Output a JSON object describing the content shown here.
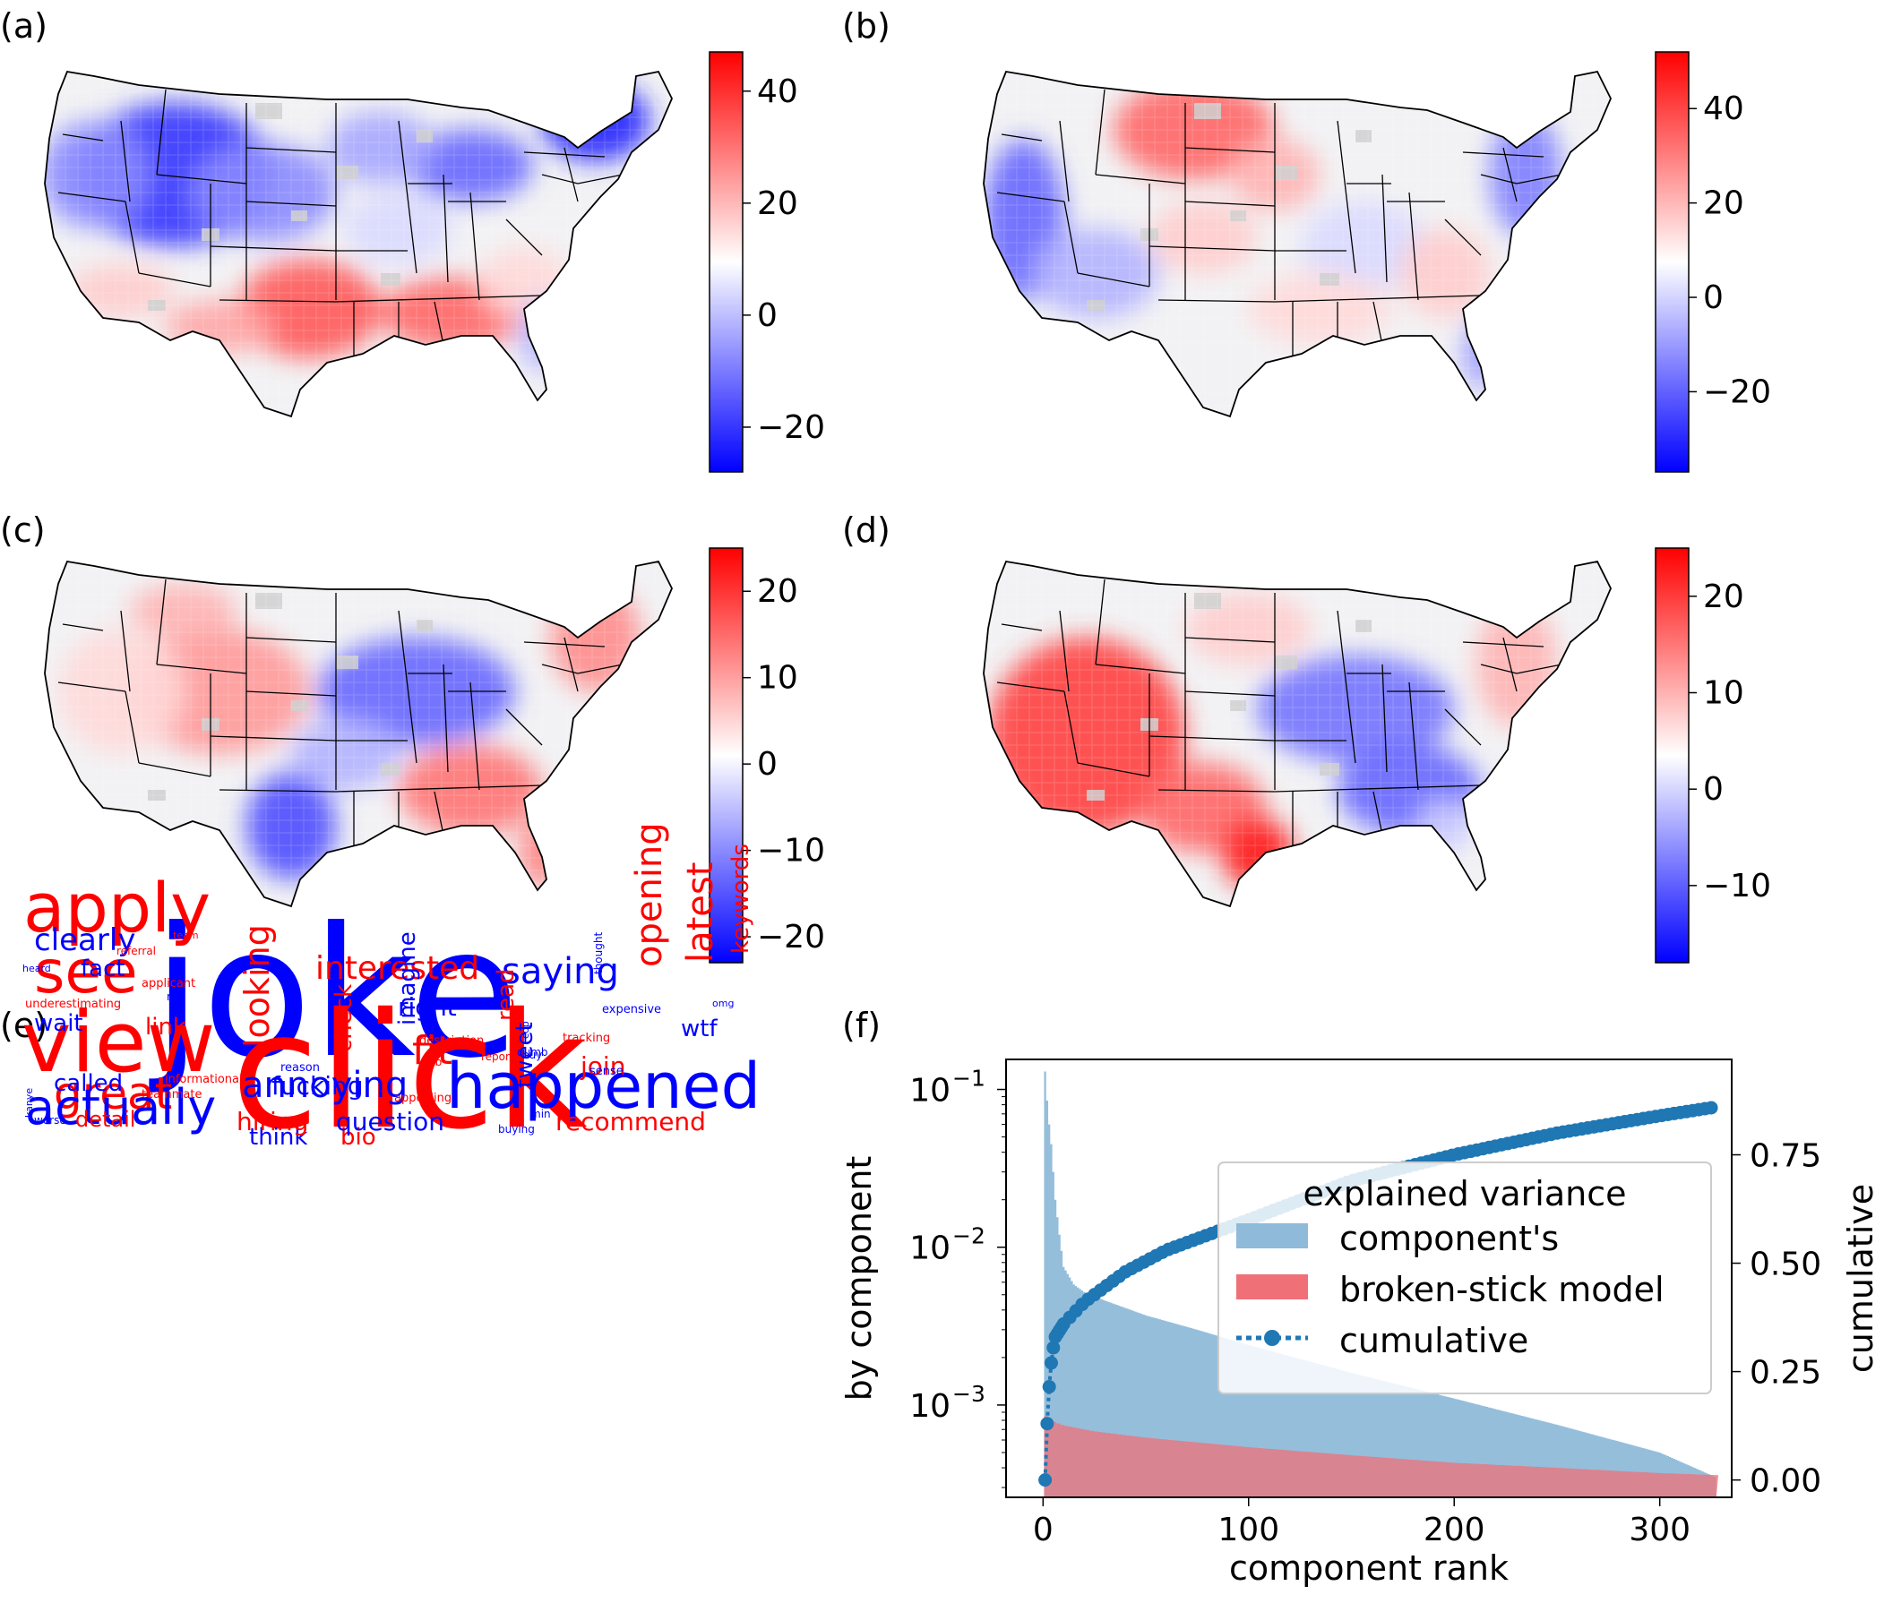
{
  "panel_labels": [
    "(a)",
    "(b)",
    "(c)",
    "(d)",
    "(e)",
    "(f)"
  ],
  "colors": {
    "positive": "#ff0000",
    "negative": "#0000ff",
    "neutral": "#ffffff",
    "missing": "#d0d0d0",
    "component_bar": "#8fbad9",
    "broken_stick": "#f07078",
    "cumulative": "#1f77b4"
  },
  "chart_data": [
    {
      "type": "heatmap",
      "panel": "(a)",
      "subject": "US county map",
      "colorscale": "bwr",
      "colorbar": {
        "min": -28,
        "max": 47,
        "ticks": [
          40,
          20,
          0,
          -20
        ],
        "tick_labels": [
          "40",
          "20",
          "0",
          "−20"
        ]
      }
    },
    {
      "type": "heatmap",
      "panel": "(b)",
      "subject": "US county map",
      "colorscale": "bwr",
      "colorbar": {
        "min": -37,
        "max": 52,
        "ticks": [
          40,
          20,
          0,
          -20
        ],
        "tick_labels": [
          "40",
          "20",
          "0",
          "−20"
        ]
      }
    },
    {
      "type": "heatmap",
      "panel": "(c)",
      "subject": "US county map",
      "colorscale": "bwr",
      "colorbar": {
        "min": -23,
        "max": 25,
        "ticks": [
          20,
          10,
          0,
          -10,
          -20
        ],
        "tick_labels": [
          "20",
          "10",
          "0",
          "−10",
          "−20"
        ]
      }
    },
    {
      "type": "heatmap",
      "panel": "(d)",
      "subject": "US county map",
      "colorscale": "bwr",
      "colorbar": {
        "min": -18,
        "max": 25,
        "ticks": [
          20,
          10,
          0,
          -10
        ],
        "tick_labels": [
          "20",
          "10",
          "0",
          "−10"
        ]
      }
    },
    {
      "type": "wordcloud",
      "panel": "(e)",
      "words": [
        {
          "text": "joke",
          "color": "blue"
        },
        {
          "text": "click",
          "color": "red"
        },
        {
          "text": "view",
          "color": "red"
        },
        {
          "text": "happened",
          "color": "blue"
        },
        {
          "text": "apply",
          "color": "red"
        },
        {
          "text": "great",
          "color": "red"
        },
        {
          "text": "see",
          "color": "red"
        },
        {
          "text": "actually",
          "color": "blue"
        },
        {
          "text": "annoying",
          "color": "blue"
        },
        {
          "text": "opening",
          "color": "red"
        },
        {
          "text": "latest",
          "color": "red"
        },
        {
          "text": "saying",
          "color": "blue"
        },
        {
          "text": "interested",
          "color": "red"
        },
        {
          "text": "looking",
          "color": "red"
        },
        {
          "text": "fit",
          "color": "red"
        },
        {
          "text": "clearly",
          "color": "blue"
        },
        {
          "text": "called",
          "color": "blue"
        },
        {
          "text": "think",
          "color": "blue"
        },
        {
          "text": "bio",
          "color": "red"
        },
        {
          "text": "imagine",
          "color": "blue"
        },
        {
          "text": "read",
          "color": "red"
        },
        {
          "text": "keywords",
          "color": "red"
        },
        {
          "text": "fact",
          "color": "blue"
        },
        {
          "text": "right",
          "color": "blue"
        },
        {
          "text": "check",
          "color": "red"
        },
        {
          "text": "fucking",
          "color": "blue"
        },
        {
          "text": "tweet",
          "color": "blue"
        },
        {
          "text": "join",
          "color": "red"
        },
        {
          "text": "wtf",
          "color": "blue"
        },
        {
          "text": "wait",
          "color": "blue"
        },
        {
          "text": "link",
          "color": "red"
        },
        {
          "text": "detail",
          "color": "red"
        },
        {
          "text": "hiring",
          "color": "red"
        },
        {
          "text": "question",
          "color": "blue"
        },
        {
          "text": "recommend",
          "color": "red"
        },
        {
          "text": "informational",
          "color": "red"
        },
        {
          "text": "kanye",
          "color": "blue"
        },
        {
          "text": "teammate",
          "color": "red"
        },
        {
          "text": "heard",
          "color": "blue"
        },
        {
          "text": "team",
          "color": "red"
        },
        {
          "text": "referral",
          "color": "red"
        },
        {
          "text": "applicant",
          "color": "red"
        },
        {
          "text": "rip",
          "color": "blue"
        },
        {
          "text": "underestimating",
          "color": "red"
        },
        {
          "text": "report",
          "color": "red"
        },
        {
          "text": "expensive",
          "color": "blue"
        },
        {
          "text": "thought",
          "color": "blue"
        },
        {
          "text": "dumb",
          "color": "blue"
        },
        {
          "text": "cop",
          "color": "blue"
        },
        {
          "text": "omg",
          "color": "blue"
        },
        {
          "text": "buy",
          "color": "blue"
        },
        {
          "text": "description",
          "color": "red"
        },
        {
          "text": "tracking",
          "color": "red"
        },
        {
          "text": "reason",
          "color": "blue"
        },
        {
          "text": "job",
          "color": "red"
        },
        {
          "text": "sense",
          "color": "blue"
        },
        {
          "text": "appealing",
          "color": "red"
        },
        {
          "text": "min",
          "color": "blue"
        },
        {
          "text": "buying",
          "color": "blue"
        },
        {
          "text": "worse",
          "color": "blue"
        }
      ]
    },
    {
      "type": "bar",
      "panel": "(f)",
      "xlabel": "component rank",
      "ylabel": "by component",
      "y2label": "cumulative",
      "xlim": [
        -18,
        335
      ],
      "ylim_log": [
        0.00026,
        0.155
      ],
      "y2lim": [
        -0.04,
        0.97
      ],
      "xticks": [
        0,
        100,
        200,
        300
      ],
      "yticks": [
        0.001,
        0.01,
        0.1
      ],
      "ytick_labels": [
        "10",
        "10",
        "10"
      ],
      "ytick_exponents": [
        "−3",
        "−2",
        "−1"
      ],
      "y2ticks": [
        0.0,
        0.25,
        0.5,
        0.75
      ],
      "y2tick_labels": [
        "0.00",
        "0.25",
        "0.50",
        "0.75"
      ],
      "legend": {
        "title": "explained variance",
        "position": "center-right",
        "entries": [
          "component's",
          "broken-stick model",
          "cumulative"
        ]
      },
      "series": [
        {
          "name": "component's",
          "kind": "bar",
          "x": [
            1,
            2,
            3,
            4,
            5,
            6,
            8,
            10,
            15,
            20,
            30,
            50,
            75,
            100,
            150,
            200,
            250,
            300,
            327
          ],
          "values": [
            0.13,
            0.085,
            0.06,
            0.045,
            0.03,
            0.02,
            0.012,
            0.0075,
            0.0058,
            0.0052,
            0.0046,
            0.0037,
            0.003,
            0.0024,
            0.0016,
            0.0011,
            0.00075,
            0.0005,
            0.00035
          ]
        },
        {
          "name": "broken-stick model",
          "kind": "bar",
          "x": [
            1,
            2,
            5,
            10,
            25,
            50,
            100,
            150,
            200,
            250,
            300,
            327
          ],
          "values": [
            0.00085,
            0.00082,
            0.00078,
            0.00074,
            0.00068,
            0.00062,
            0.00054,
            0.00048,
            0.00043,
            0.0004,
            0.00037,
            0.00036
          ]
        },
        {
          "name": "cumulative",
          "kind": "line",
          "x": [
            1,
            2,
            3,
            4,
            5,
            6,
            10,
            20,
            40,
            60,
            100,
            150,
            200,
            250,
            300,
            327
          ],
          "values": [
            0.0,
            0.13,
            0.215,
            0.27,
            0.305,
            0.33,
            0.36,
            0.41,
            0.48,
            0.53,
            0.6,
            0.69,
            0.75,
            0.8,
            0.84,
            0.86
          ]
        }
      ]
    }
  ]
}
